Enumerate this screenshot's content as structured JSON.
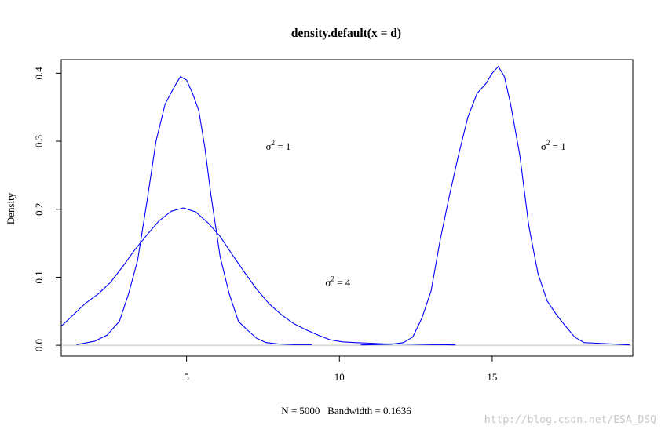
{
  "chart_data": {
    "type": "line",
    "title": "density.default(x = d)",
    "xlabel": "N = 5000   Bandwidth = 0.1636",
    "ylabel": "Density",
    "xlim": [
      0.9,
      19.6
    ],
    "ylim": [
      -0.016,
      0.42
    ],
    "x_ticks": [
      5,
      10,
      15
    ],
    "x_tick_labels": [
      "5",
      "10",
      "15"
    ],
    "y_ticks": [
      0.0,
      0.1,
      0.2,
      0.3,
      0.4
    ],
    "y_tick_labels": [
      "0.0",
      "0.1",
      "0.2",
      "0.3",
      "0.4"
    ],
    "grid": false,
    "baseline_y": 0,
    "line_color": "#0000ff",
    "baseline_color": "#bebebe",
    "series": [
      {
        "x": [
          1.4,
          2.0,
          2.4,
          2.8,
          3.1,
          3.4,
          3.7,
          4.0,
          4.3,
          4.6,
          4.8,
          5.0,
          5.2,
          5.4,
          5.6,
          5.8,
          6.1,
          6.4,
          6.7,
          7.0,
          7.3,
          7.6,
          8.0,
          8.5,
          9.1
        ],
        "y": [
          0.001,
          0.006,
          0.015,
          0.035,
          0.075,
          0.125,
          0.21,
          0.3,
          0.355,
          0.38,
          0.395,
          0.39,
          0.37,
          0.345,
          0.29,
          0.22,
          0.13,
          0.075,
          0.035,
          0.022,
          0.01,
          0.004,
          0.002,
          0.001,
          0.001
        ]
      },
      {
        "x": [
          0.9,
          1.3,
          1.7,
          2.1,
          2.5,
          2.9,
          3.3,
          3.7,
          4.1,
          4.5,
          4.9,
          5.3,
          5.7,
          6.1,
          6.5,
          6.9,
          7.3,
          7.7,
          8.1,
          8.5,
          8.9,
          9.3,
          9.7,
          10.1,
          10.5,
          11.0,
          11.5,
          12.0,
          12.5,
          13.0,
          13.5,
          13.8
        ],
        "y": [
          0.028,
          0.045,
          0.062,
          0.075,
          0.092,
          0.115,
          0.14,
          0.162,
          0.183,
          0.197,
          0.202,
          0.196,
          0.18,
          0.16,
          0.133,
          0.107,
          0.082,
          0.061,
          0.045,
          0.032,
          0.023,
          0.015,
          0.008,
          0.005,
          0.004,
          0.003,
          0.002,
          0.002,
          0.0015,
          0.001,
          0.0008,
          0.0005
        ]
      },
      {
        "x": [
          10.7,
          11.2,
          11.7,
          12.1,
          12.4,
          12.7,
          13.0,
          13.3,
          13.6,
          13.9,
          14.2,
          14.5,
          14.8,
          15.0,
          15.2,
          15.4,
          15.6,
          15.9,
          16.2,
          16.5,
          16.8,
          17.1,
          17.4,
          17.7,
          18.0,
          18.4,
          18.9,
          19.5
        ],
        "y": [
          0.0005,
          0.001,
          0.0015,
          0.004,
          0.012,
          0.04,
          0.08,
          0.155,
          0.22,
          0.28,
          0.335,
          0.37,
          0.385,
          0.4,
          0.41,
          0.395,
          0.355,
          0.28,
          0.175,
          0.105,
          0.065,
          0.045,
          0.028,
          0.012,
          0.004,
          0.003,
          0.002,
          0.0005
        ]
      }
    ],
    "annotations": [
      {
        "base": "σ",
        "sup": "2",
        "rest": " = 1",
        "x": 8.0,
        "y": 0.293
      },
      {
        "base": "σ",
        "sup": "2",
        "rest": " = 4",
        "x": 9.95,
        "y": 0.093
      },
      {
        "base": "σ",
        "sup": "2",
        "rest": " = 1",
        "x": 17.0,
        "y": 0.293
      }
    ]
  },
  "watermark": "http://blog.csdn.net/ESA_DSQ"
}
